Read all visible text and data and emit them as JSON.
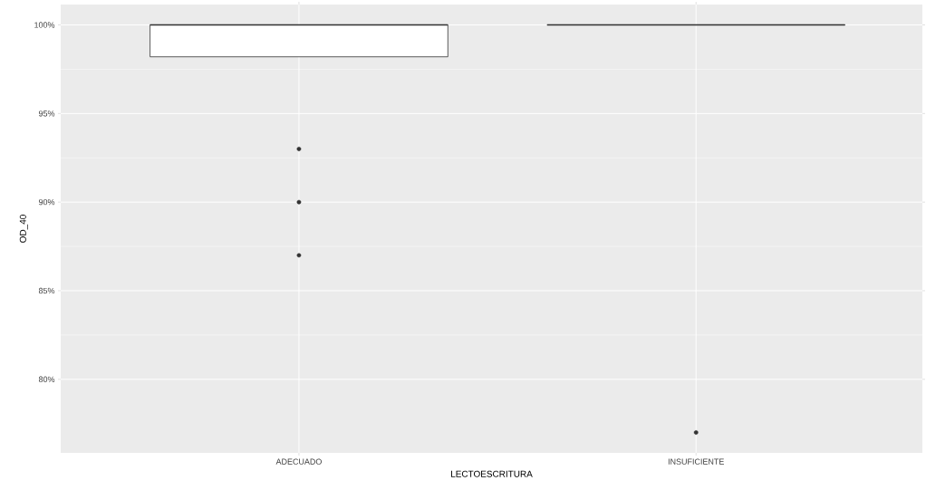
{
  "chart_data": {
    "type": "box",
    "xlabel": "LECTOESCRITURA",
    "ylabel": "OD_40",
    "categories": [
      "ADECUADO",
      "INSUFICIENTE"
    ],
    "boxes": [
      {
        "low": 98.2,
        "q1": 98.2,
        "median": 100,
        "q3": 100,
        "high": 100,
        "outliers": [
          93,
          90,
          87
        ]
      },
      {
        "low": 100,
        "q1": 100,
        "median": 100,
        "q3": 100,
        "high": 100,
        "outliers": [
          77
        ]
      }
    ],
    "ylim": [
      75.85,
      101.15
    ],
    "yticks": [
      {
        "value": 80,
        "label": "80%"
      },
      {
        "value": 85,
        "label": "85%"
      },
      {
        "value": 90,
        "label": "90%"
      },
      {
        "value": 95,
        "label": "95%"
      },
      {
        "value": 100,
        "label": "100%"
      }
    ],
    "grid": true
  }
}
